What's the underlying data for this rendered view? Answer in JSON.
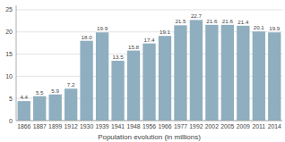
{
  "chart_data": {
    "type": "bar",
    "xlabel": "Population evolution (in millions)",
    "categories": [
      "1866",
      "1887",
      "1899",
      "1912",
      "1930",
      "1939",
      "1941",
      "1948",
      "1956",
      "1966",
      "1977",
      "1992",
      "2002",
      "2005",
      "2009",
      "2011",
      "2014"
    ],
    "values": [
      4.4,
      5.5,
      5.9,
      7.2,
      18.0,
      19.9,
      13.5,
      15.8,
      17.4,
      19.1,
      21.5,
      22.7,
      21.6,
      21.6,
      21.4,
      20.1,
      19.9
    ],
    "value_labels": [
      "4.4",
      "5.5",
      "5.9",
      "7.2",
      "18.0",
      "19.9",
      "13.5",
      "15.8",
      "17.4",
      "19.1",
      "21.5",
      "22.7",
      "21.6",
      "21.6",
      "21.4",
      "20.1",
      "19.9"
    ],
    "color": "#8faebf",
    "ylim": [
      0,
      26
    ],
    "yticks": [
      0,
      5,
      10,
      15,
      20,
      25
    ],
    "grid": true,
    "data_labels": true
  }
}
